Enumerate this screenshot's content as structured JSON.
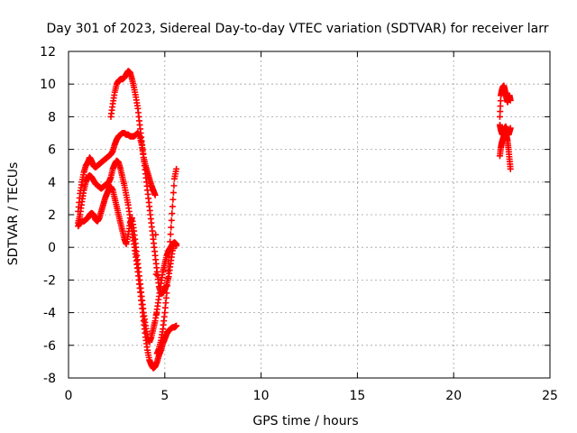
{
  "chart_data": {
    "type": "scatter",
    "title": "Day 301 of 2023, Sidereal Day-to-day VTEC variation (SDTVAR) for receiver larr",
    "xlabel": "GPS time / hours",
    "ylabel": "SDTVAR / TECUs",
    "xlim": [
      0,
      25
    ],
    "ylim": [
      -8,
      12
    ],
    "xticks": [
      0,
      5,
      10,
      15,
      20,
      25
    ],
    "yticks": [
      -8,
      -6,
      -4,
      -2,
      0,
      2,
      4,
      6,
      8,
      10,
      12
    ],
    "grid": true,
    "marker": "+",
    "color": "#ff0000",
    "series": [
      {
        "x": [
          0.5,
          0.6,
          0.7,
          0.8,
          0.9,
          1.0,
          1.1,
          1.2,
          1.3,
          1.4,
          1.5,
          1.6,
          1.7,
          1.8,
          1.9,
          2.0,
          2.1,
          2.2,
          2.3,
          2.4,
          2.5,
          2.6,
          2.7,
          2.8,
          2.9,
          3.0,
          3.1,
          3.2,
          3.3,
          3.4,
          3.5,
          3.6,
          3.7,
          3.8,
          3.9,
          4.0,
          4.1,
          4.2,
          4.3,
          4.4,
          4.5,
          4.6,
          4.7,
          4.8,
          4.9,
          5.0,
          5.1,
          5.2,
          5.3,
          5.4,
          5.5,
          5.6
        ],
        "y": [
          2.2,
          3.3,
          4.0,
          4.6,
          5.0,
          5.2,
          5.5,
          5.3,
          5.0,
          4.9,
          5.0,
          5.1,
          5.2,
          5.3,
          5.4,
          5.5,
          5.6,
          5.7,
          5.9,
          6.3,
          6.6,
          6.8,
          6.9,
          7.0,
          7.0,
          6.9,
          6.9,
          6.8,
          6.8,
          6.8,
          6.9,
          7.0,
          6.8,
          6.3,
          5.5,
          5.0,
          4.6,
          4.2,
          3.8,
          3.5,
          3.2,
          -6.5,
          -6.2,
          -5.7,
          -5.0,
          -4.0,
          -2.8,
          -1.0,
          0.8,
          2.5,
          4.2,
          4.8
        ]
      },
      {
        "x": [
          0.5,
          0.6,
          0.7,
          0.8,
          0.9,
          1.0,
          1.1,
          1.2,
          1.3,
          1.4,
          1.5,
          1.6,
          1.7,
          1.8,
          1.9,
          2.0,
          2.1,
          2.2,
          2.3,
          2.4,
          2.5,
          2.6,
          2.7,
          2.8,
          2.9,
          3.0,
          3.1,
          3.2,
          3.3,
          3.4,
          3.5,
          3.6,
          3.7,
          3.8,
          3.9,
          4.0,
          4.1,
          4.2,
          4.3,
          4.4,
          4.5,
          4.6,
          4.7,
          4.8,
          4.9,
          5.0,
          5.1,
          5.2,
          5.3,
          5.4,
          5.5,
          5.6
        ],
        "y": [
          1.5,
          2.0,
          2.8,
          3.5,
          4.0,
          4.3,
          4.4,
          4.3,
          4.1,
          3.9,
          3.8,
          3.7,
          3.6,
          3.7,
          3.8,
          3.9,
          4.0,
          4.3,
          4.8,
          5.1,
          5.3,
          5.2,
          4.8,
          4.3,
          3.8,
          3.2,
          2.6,
          1.8,
          1.0,
          0.2,
          -0.6,
          -1.5,
          -2.5,
          -3.5,
          -4.5,
          -5.5,
          -6.3,
          -6.9,
          -7.2,
          -7.4,
          -7.3,
          -7.0,
          -6.6,
          -6.3,
          -5.9,
          -5.6,
          -5.3,
          -5.1,
          -5.0,
          -4.9,
          -4.9,
          -4.8
        ]
      },
      {
        "x": [
          0.5,
          0.6,
          0.7,
          0.8,
          0.9,
          1.0,
          1.1,
          1.2,
          1.3,
          1.4,
          1.5,
          1.6,
          1.7,
          1.8,
          1.9,
          2.0,
          2.1,
          2.2,
          2.3,
          2.4,
          2.5,
          2.6,
          2.7,
          2.8,
          2.9,
          3.0,
          3.1,
          3.2,
          3.3,
          3.4,
          3.5,
          3.6,
          3.7,
          3.8,
          3.9,
          4.0,
          4.1,
          4.2,
          4.3,
          4.4,
          4.5,
          4.6,
          4.7,
          4.8,
          4.9,
          5.0,
          5.1,
          5.2,
          5.3,
          5.4,
          5.5,
          5.6
        ],
        "y": [
          1.3,
          1.5,
          1.6,
          1.6,
          1.7,
          1.8,
          2.0,
          2.1,
          2.0,
          1.7,
          1.6,
          1.8,
          2.2,
          2.6,
          3.0,
          3.3,
          3.6,
          3.7,
          3.5,
          3.0,
          2.5,
          2.0,
          1.5,
          1.0,
          0.5,
          0.2,
          0.8,
          1.5,
          1.8,
          1.0,
          0.0,
          -1.0,
          -2.0,
          -3.0,
          -4.0,
          -4.8,
          -5.5,
          -5.8,
          -5.5,
          -5.0,
          -4.5,
          -3.8,
          -3.0,
          -2.2,
          -1.5,
          -1.0,
          -0.5,
          -0.2,
          0.0,
          0.2,
          0.3,
          0.2
        ]
      },
      {
        "x": [
          2.2,
          2.3,
          2.4,
          2.5,
          2.6,
          2.7,
          2.8,
          2.9,
          3.0,
          3.1,
          3.2,
          3.3,
          3.4,
          3.5,
          3.6,
          3.7,
          3.8,
          3.9,
          4.0,
          4.1,
          4.2,
          4.3,
          4.4,
          4.5,
          4.6,
          4.7,
          4.8,
          4.9,
          5.0,
          5.1,
          5.2,
          5.3,
          5.4,
          5.5,
          5.6
        ],
        "y": [
          8.0,
          8.8,
          9.5,
          10.0,
          10.2,
          10.3,
          10.3,
          10.4,
          10.6,
          10.8,
          10.7,
          10.3,
          9.8,
          9.2,
          8.5,
          7.5,
          6.5,
          5.5,
          4.5,
          3.5,
          2.5,
          1.5,
          0.5,
          -0.5,
          -1.5,
          -2.4,
          -2.8,
          -2.8,
          -2.6,
          -2.3,
          -1.8,
          -1.0,
          -0.2,
          0.3,
          0.1
        ]
      },
      {
        "x": [
          22.4,
          22.45,
          22.5,
          22.55,
          22.6,
          22.65,
          22.7,
          22.75,
          22.8,
          22.85,
          22.9,
          22.95
        ],
        "y": [
          8.0,
          9.3,
          9.6,
          9.8,
          9.9,
          9.7,
          9.4,
          9.1,
          8.9,
          9.1,
          9.3,
          9.0
        ]
      },
      {
        "x": [
          22.4,
          22.45,
          22.5,
          22.55,
          22.6,
          22.65,
          22.7,
          22.75,
          22.8,
          22.85,
          22.9,
          22.95
        ],
        "y": [
          5.6,
          6.1,
          6.4,
          6.6,
          6.8,
          7.0,
          7.0,
          6.8,
          6.5,
          6.0,
          5.4,
          4.8
        ]
      },
      {
        "x": [
          22.4,
          22.45,
          22.5,
          22.55,
          22.6,
          22.65,
          22.7,
          22.75,
          22.8,
          22.85,
          22.9,
          22.95
        ],
        "y": [
          7.5,
          7.2,
          7.0,
          6.9,
          7.1,
          7.3,
          7.4,
          7.2,
          7.0,
          6.9,
          7.1,
          7.3
        ]
      }
    ]
  }
}
